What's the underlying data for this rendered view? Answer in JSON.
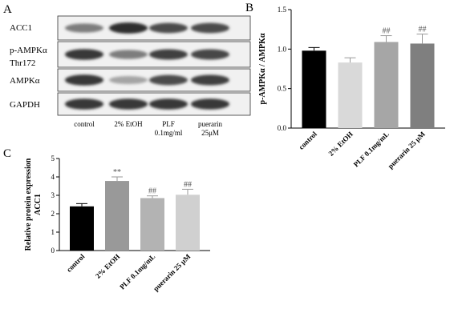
{
  "panels": {
    "a": {
      "label": "A",
      "rows": [
        "ACC1",
        "p-AMPKα Thr172",
        "AMPKα",
        "GAPDH"
      ],
      "lanes": [
        "control",
        "2% EtOH",
        "PLF 0.1mg/ml",
        "puerarin 25μM"
      ],
      "band_intensity": [
        [
          0.55,
          0.95,
          0.8,
          0.8
        ],
        [
          0.9,
          0.55,
          0.85,
          0.82
        ],
        [
          0.9,
          0.35,
          0.8,
          0.85
        ],
        [
          0.9,
          0.9,
          0.9,
          0.9
        ]
      ]
    },
    "b": {
      "label": "B"
    },
    "c": {
      "label": "C"
    }
  },
  "chart_data": [
    {
      "panel": "B",
      "type": "bar",
      "title": "",
      "xlabel": "",
      "ylabel": "p-AMPKα / AMPKα",
      "ylim": [
        0,
        1.5
      ],
      "yticks": [
        "0.0",
        "0.5",
        "1.0",
        "1.5"
      ],
      "categories": [
        "control",
        "2% EtOH",
        "PLF 0.1mg/mL",
        "puerarin 25 μM"
      ],
      "values": [
        0.98,
        0.83,
        1.09,
        1.07
      ],
      "errors": [
        0.04,
        0.06,
        0.08,
        0.12
      ],
      "annotations": [
        "",
        "",
        "##",
        "##"
      ],
      "colors": [
        "#000000",
        "#d9d9d9",
        "#a6a6a6",
        "#7f7f7f"
      ],
      "grid": false,
      "legend": "none"
    },
    {
      "panel": "C",
      "type": "bar",
      "title": "",
      "xlabel": "",
      "ylabel": "Relative protein expression",
      "ylabel2": "ACC1",
      "ylim": [
        0,
        5
      ],
      "yticks": [
        "0",
        "1",
        "2",
        "3",
        "4",
        "5"
      ],
      "categories": [
        "control",
        "2% EtOH",
        "PLF 0.1mg/mL",
        "puerarin 25 μM"
      ],
      "values": [
        2.4,
        3.78,
        2.85,
        3.03
      ],
      "errors": [
        0.15,
        0.22,
        0.12,
        0.3
      ],
      "annotations": [
        "",
        "**",
        "##",
        "##"
      ],
      "colors": [
        "#000000",
        "#999999",
        "#b3b3b3",
        "#d0d0d0"
      ],
      "grid": false,
      "legend": "none"
    }
  ]
}
